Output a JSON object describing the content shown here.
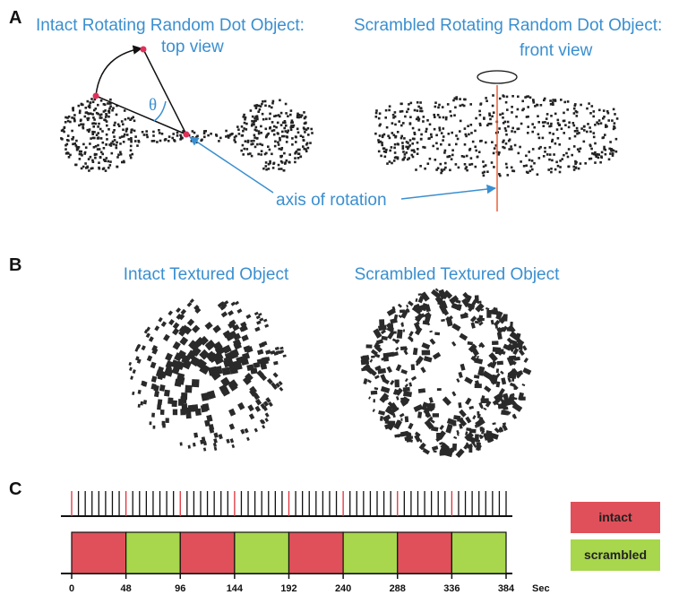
{
  "panel_a": {
    "label": "A",
    "left_title": "Intact Rotating Random Dot Object:",
    "left_subtitle": "top view",
    "angle_label": "θ",
    "right_title": "Scrambled Rotating Random Dot Object:",
    "right_subtitle": "front view",
    "axis_label": "axis of rotation"
  },
  "panel_b": {
    "label": "B",
    "left_title": "Intact Textured Object",
    "right_title": "Scrambled Textured Object"
  },
  "panel_c": {
    "label": "C",
    "ticks": [
      0,
      48,
      96,
      144,
      192,
      240,
      288,
      336,
      384
    ],
    "unit": "Sec",
    "legend": [
      {
        "name": "intact",
        "color": "#e0505a"
      },
      {
        "name": "scrambled",
        "color": "#a8d64c"
      }
    ]
  }
}
